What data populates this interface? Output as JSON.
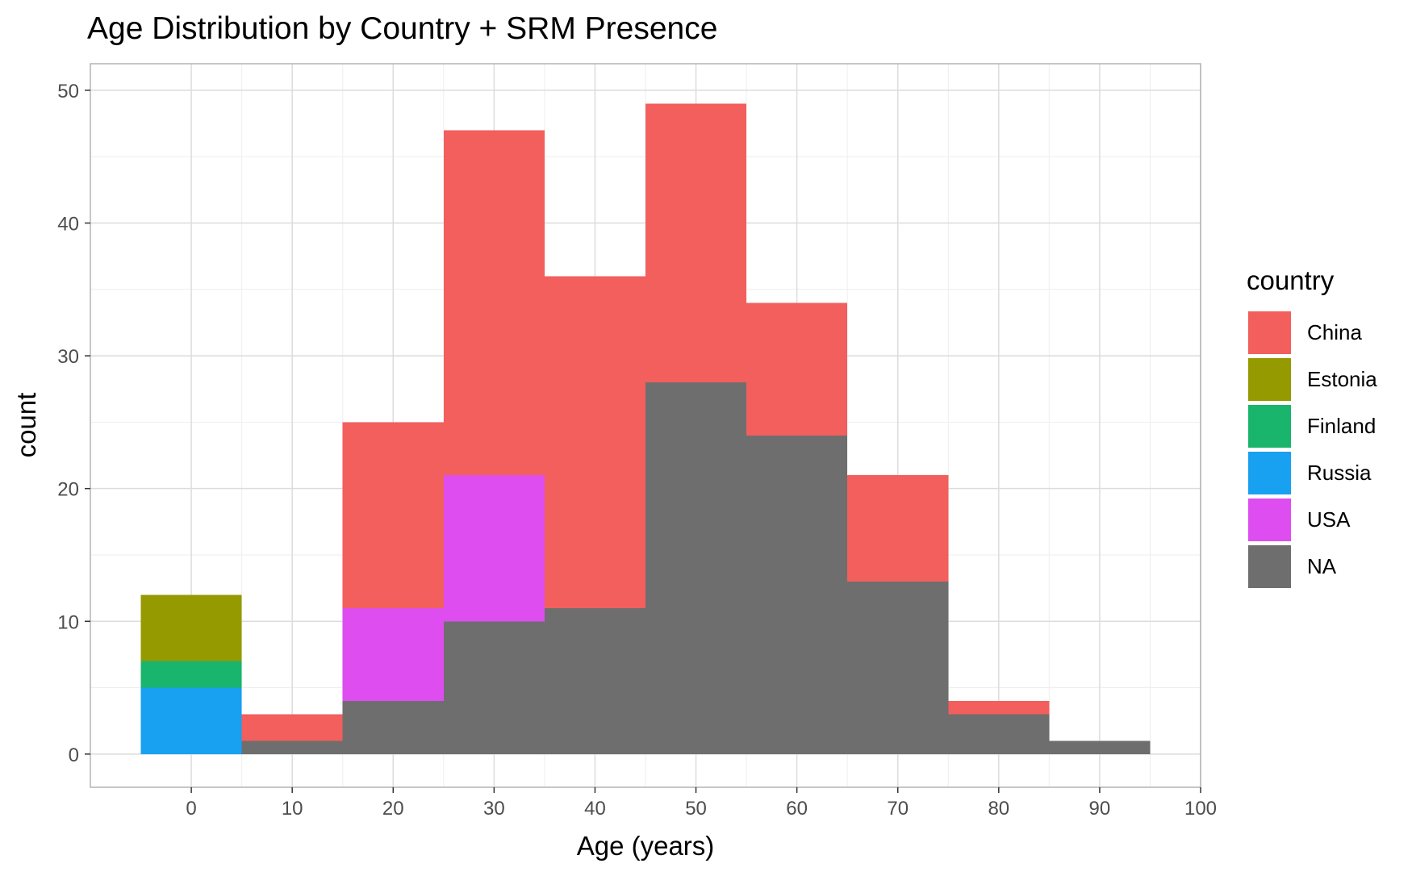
{
  "chart_data": {
    "type": "bar",
    "subtype": "stacked-histogram",
    "title": "Age Distribution by Country + SRM Presence",
    "xlabel": "Age (years)",
    "ylabel": "count",
    "xlim": [
      -10,
      100
    ],
    "ylim": [
      -2.5,
      52
    ],
    "x_ticks": [
      0,
      10,
      20,
      30,
      40,
      50,
      60,
      70,
      80,
      90,
      100
    ],
    "y_ticks": [
      0,
      10,
      20,
      30,
      40,
      50
    ],
    "bin_width": 10,
    "bins": [
      {
        "start": -5,
        "end": 5
      },
      {
        "start": 5,
        "end": 15
      },
      {
        "start": 15,
        "end": 25
      },
      {
        "start": 25,
        "end": 35
      },
      {
        "start": 35,
        "end": 45
      },
      {
        "start": 45,
        "end": 55
      },
      {
        "start": 55,
        "end": 65
      },
      {
        "start": 65,
        "end": 75
      },
      {
        "start": 75,
        "end": 85
      },
      {
        "start": 85,
        "end": 95
      }
    ],
    "bin_centers": [
      0,
      10,
      20,
      30,
      40,
      50,
      60,
      70,
      80,
      90
    ],
    "stack_order_bottom_to_top": [
      "NA",
      "Russia",
      "Finland",
      "Estonia",
      "USA",
      "China"
    ],
    "series": [
      {
        "name": "China",
        "color": "#F25F5C",
        "values": [
          0,
          2,
          14,
          26,
          25,
          21,
          10,
          8,
          1,
          0
        ]
      },
      {
        "name": "Estonia",
        "color": "#949A00",
        "values": [
          5,
          0,
          0,
          0,
          0,
          0,
          0,
          0,
          0,
          0
        ]
      },
      {
        "name": "Finland",
        "color": "#1AB56C",
        "values": [
          2,
          0,
          0,
          0,
          0,
          0,
          0,
          0,
          0,
          0
        ]
      },
      {
        "name": "Russia",
        "color": "#18A0F1",
        "values": [
          5,
          0,
          0,
          0,
          0,
          0,
          0,
          0,
          0,
          0
        ]
      },
      {
        "name": "USA",
        "color": "#DE4DEF",
        "values": [
          0,
          0,
          7,
          11,
          0,
          0,
          0,
          0,
          0,
          0
        ]
      },
      {
        "name": "NA",
        "color": "#6E6E6E",
        "values": [
          0,
          1,
          4,
          10,
          11,
          28,
          24,
          13,
          3,
          1
        ]
      }
    ],
    "totals": [
      12,
      3,
      25,
      47,
      36,
      49,
      34,
      21,
      4,
      1
    ],
    "legend": {
      "title": "country",
      "position": "right"
    },
    "grid": true,
    "colors": {
      "grid_major": "#DCDCDC",
      "grid_minor": "#EEEEEE",
      "panel_border": "#B3B3B3",
      "tick_text": "#4D4D4D",
      "text": "#000000"
    }
  }
}
